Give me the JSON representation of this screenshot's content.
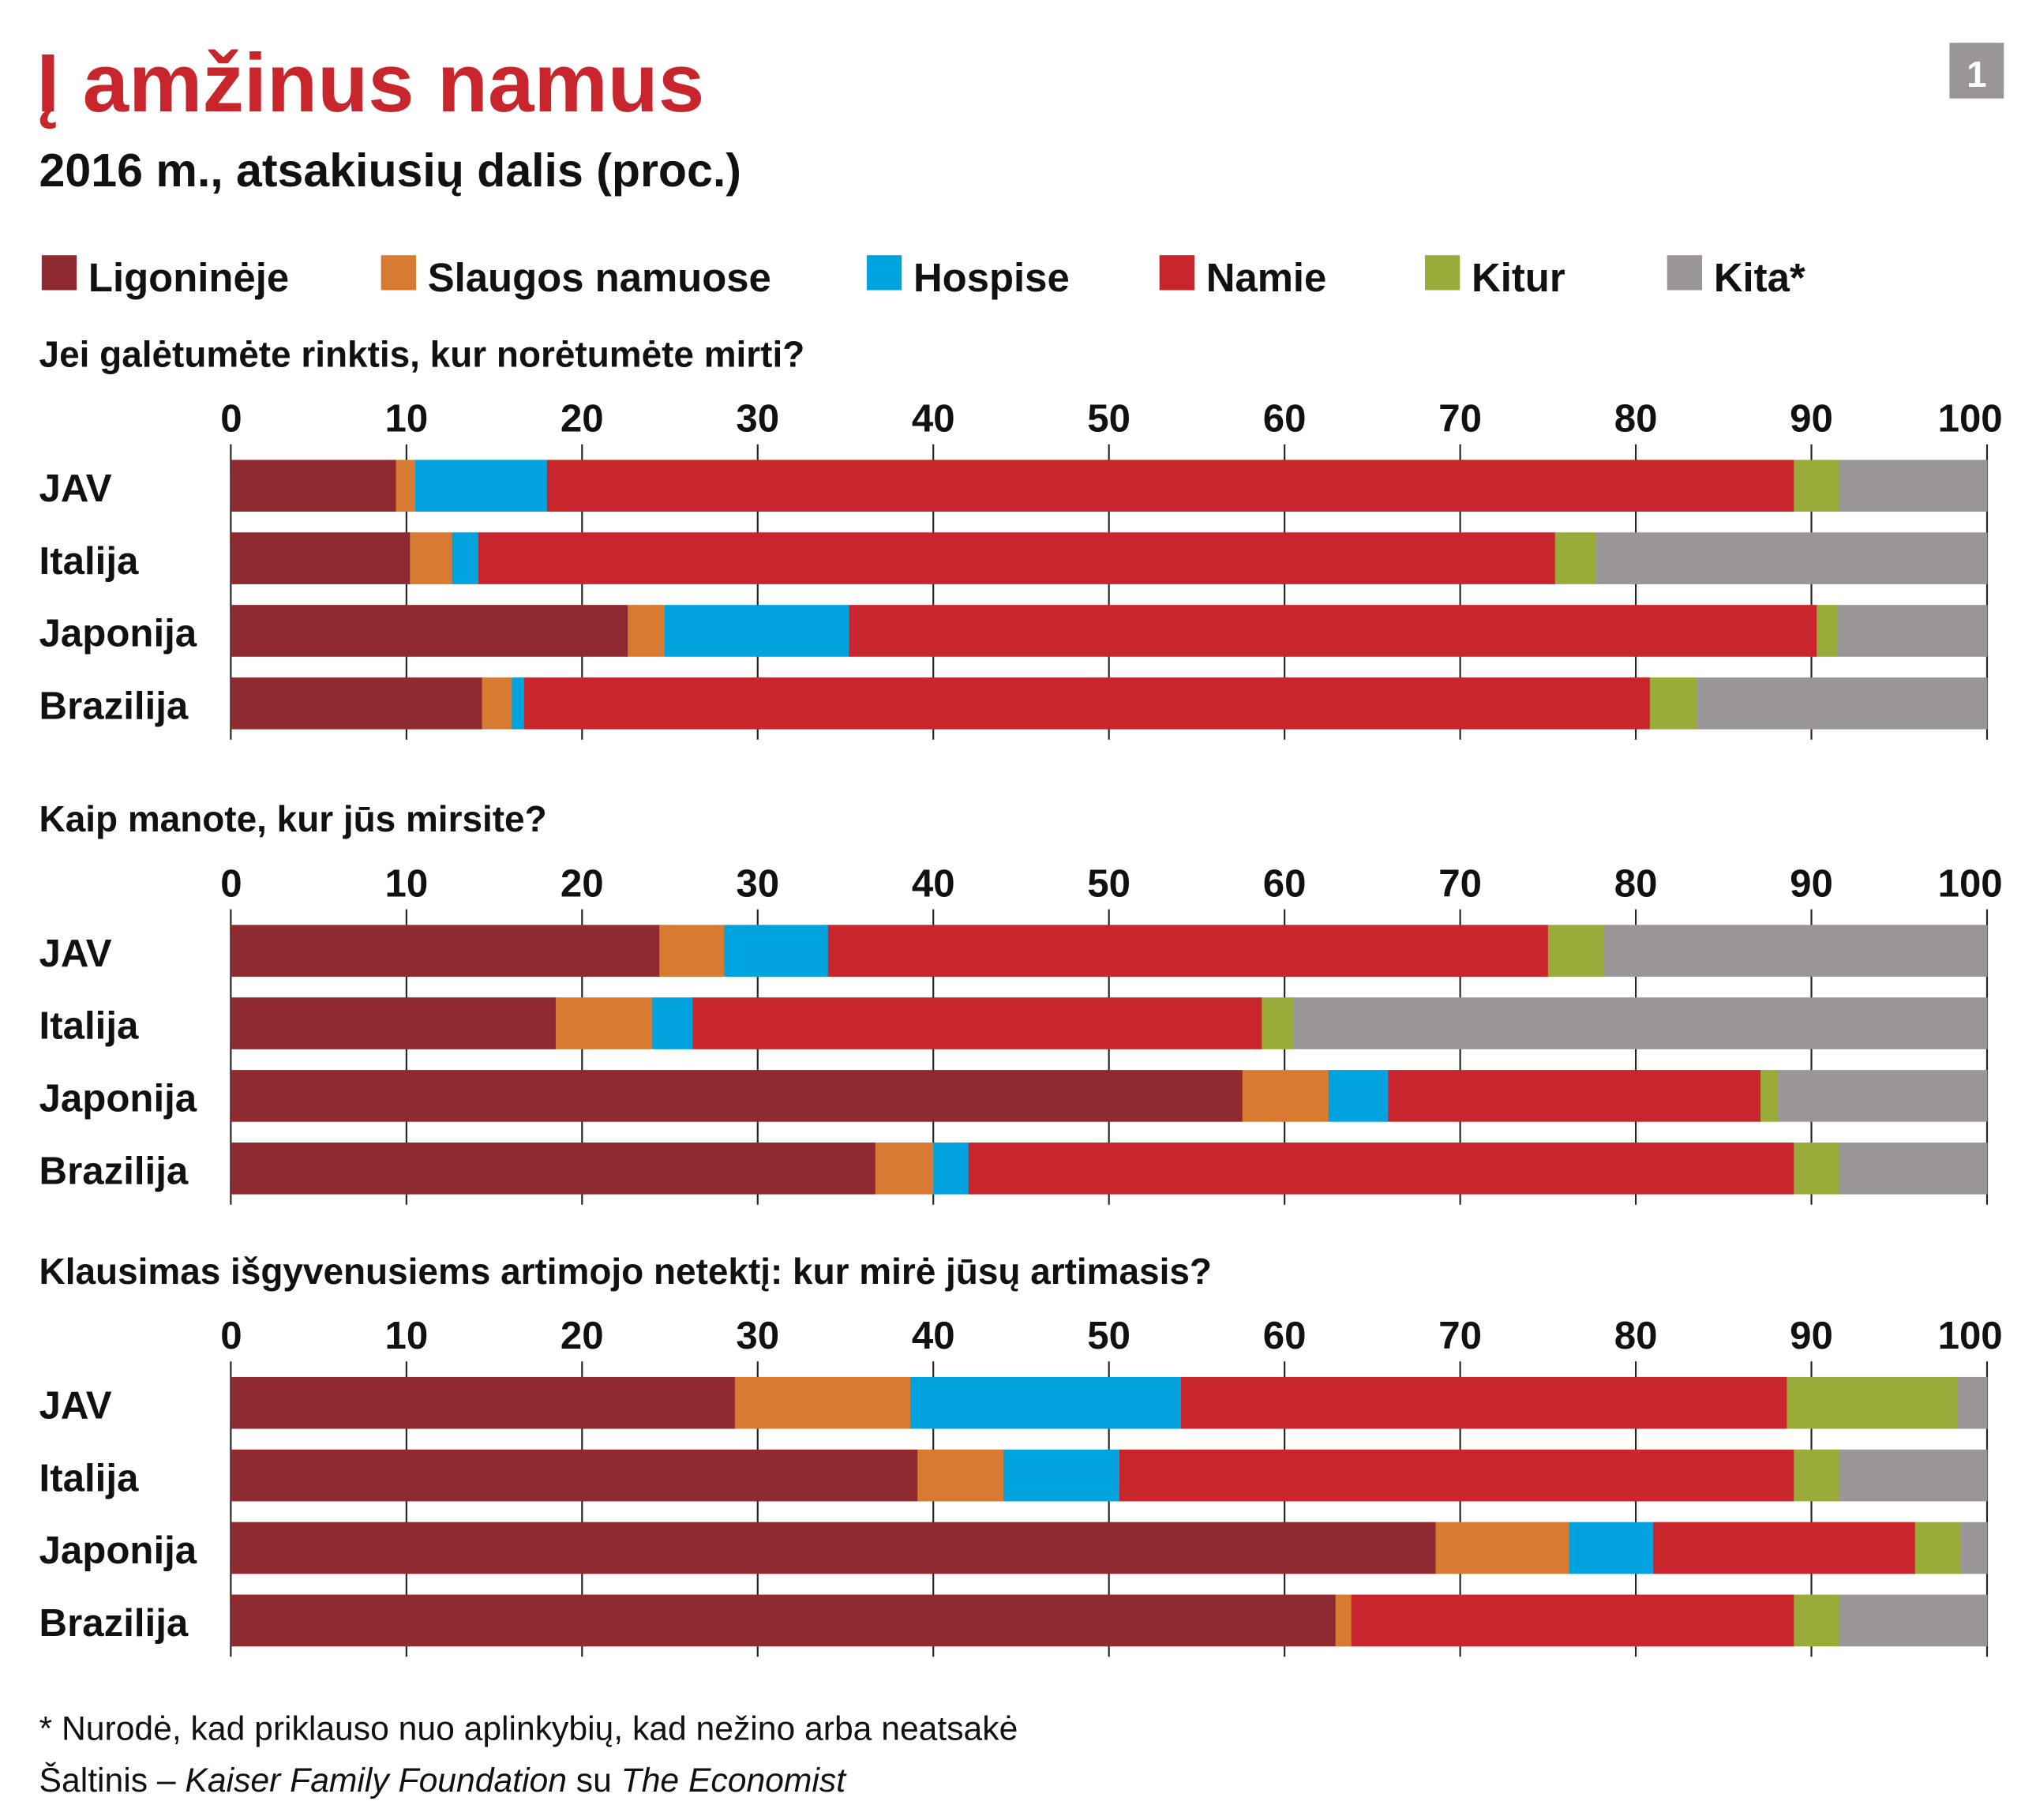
{
  "header": {
    "title": "Į amžinus namus",
    "subtitle": "2016 m., atsakiusių dalis (proc.)",
    "badge": "1"
  },
  "colors": {
    "Ligoninėje": "#8e2b30",
    "Slaugos namuose": "#d97a32",
    "Hospise": "#00a3de",
    "Namie": "#c9252c",
    "Kitur": "#9aab3a",
    "Kita*": "#9a9697",
    "title": "#c9252c"
  },
  "legend": [
    "Ligoninėje",
    "Slaugos namuose",
    "Hospise",
    "Namie",
    "Kitur",
    "Kita*"
  ],
  "chart_data": [
    {
      "type": "bar",
      "orientation": "horizontal",
      "stacked": true,
      "title": "Jei galėtumėte rinktis, kur norėtumėte mirti?",
      "categories": [
        "JAV",
        "Italija",
        "Japonija",
        "Brazilija"
      ],
      "xlim": [
        0,
        100
      ],
      "xticks": [
        "0",
        "10",
        "20",
        "30",
        "40",
        "50",
        "60",
        "70",
        "80",
        "90",
        "100"
      ],
      "grid": true,
      "series": [
        {
          "name": "Ligoninėje",
          "values": [
            9.4,
            10.2,
            22.6,
            14.3
          ]
        },
        {
          "name": "Slaugos namuose",
          "values": [
            1.1,
            2.4,
            2.1,
            1.7
          ]
        },
        {
          "name": "Hospise",
          "values": [
            7.5,
            1.5,
            10.5,
            0.7
          ]
        },
        {
          "name": "Namie",
          "values": [
            71.0,
            61.3,
            55.1,
            64.1
          ]
        },
        {
          "name": "Kitur",
          "values": [
            2.6,
            2.3,
            1.2,
            2.7
          ]
        },
        {
          "name": "Kita*",
          "values": [
            8.4,
            22.3,
            8.5,
            16.5
          ]
        }
      ]
    },
    {
      "type": "bar",
      "orientation": "horizontal",
      "stacked": true,
      "title": "Kaip manote, kur jūs mirsite?",
      "categories": [
        "JAV",
        "Italija",
        "Japonija",
        "Brazilija"
      ],
      "xlim": [
        0,
        100
      ],
      "xticks": [
        "0",
        "10",
        "20",
        "30",
        "40",
        "50",
        "60",
        "70",
        "80",
        "90",
        "100"
      ],
      "grid": true,
      "series": [
        {
          "name": "Ligoninėje",
          "values": [
            24.4,
            18.5,
            57.6,
            36.7
          ]
        },
        {
          "name": "Slaugos namuose",
          "values": [
            3.7,
            5.5,
            4.9,
            3.3
          ]
        },
        {
          "name": "Hospise",
          "values": [
            5.9,
            2.3,
            3.4,
            2.0
          ]
        },
        {
          "name": "Namie",
          "values": [
            41.0,
            32.4,
            21.2,
            47.0
          ]
        },
        {
          "name": "Kitur",
          "values": [
            3.2,
            1.8,
            1.0,
            2.6
          ]
        },
        {
          "name": "Kita*",
          "values": [
            21.8,
            39.5,
            11.9,
            8.4
          ]
        }
      ]
    },
    {
      "type": "bar",
      "orientation": "horizontal",
      "stacked": true,
      "title": "Klausimas išgyvenusiems artimojo netektį: kur mirė jūsų artimasis?",
      "categories": [
        "JAV",
        "Italija",
        "Japonija",
        "Brazilija"
      ],
      "xlim": [
        0,
        100
      ],
      "xticks": [
        "0",
        "10",
        "20",
        "30",
        "40",
        "50",
        "60",
        "70",
        "80",
        "90",
        "100"
      ],
      "grid": true,
      "series": [
        {
          "name": "Ligoninėje",
          "values": [
            28.7,
            39.1,
            68.6,
            62.9
          ]
        },
        {
          "name": "Slaugos namuose",
          "values": [
            10.0,
            4.9,
            7.6,
            0.9
          ]
        },
        {
          "name": "Hospise",
          "values": [
            15.4,
            6.6,
            4.8,
            0
          ]
        },
        {
          "name": "Namie",
          "values": [
            34.5,
            38.4,
            14.9,
            25.2
          ]
        },
        {
          "name": "Kitur",
          "values": [
            9.7,
            2.6,
            2.6,
            2.6
          ]
        },
        {
          "name": "Kita*",
          "values": [
            1.7,
            8.4,
            1.5,
            8.4
          ]
        }
      ]
    }
  ],
  "footer": {
    "note": "* Nurodė, kad priklauso nuo aplinkybių, kad nežino arba neatsakė",
    "source_prefix": "Šaltinis – ",
    "source_org": "Kaiser Family Foundation",
    "source_mid": " su ",
    "source_pub": "The Economist"
  }
}
